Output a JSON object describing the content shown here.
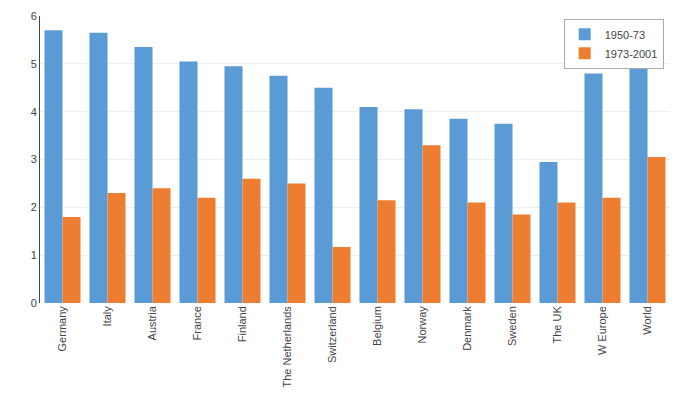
{
  "chart_data": {
    "type": "bar",
    "categories": [
      "Germany",
      "Italy",
      "Austria",
      "France",
      "Finland",
      "The Netherlands",
      "Switzerland",
      "Belgium",
      "Norway",
      "Denmark",
      "Sweden",
      "The UK",
      "W Europe",
      "World"
    ],
    "series": [
      {
        "name": "1950-73",
        "color": "#5B9BD5",
        "values": [
          5.7,
          5.65,
          5.35,
          5.05,
          4.95,
          4.75,
          4.5,
          4.1,
          4.05,
          3.85,
          3.75,
          2.95,
          4.8,
          4.9
        ]
      },
      {
        "name": "1973-2001",
        "color": "#ED7D31",
        "values": [
          1.8,
          2.3,
          2.4,
          2.2,
          2.6,
          2.5,
          1.17,
          2.15,
          3.3,
          2.1,
          1.85,
          2.1,
          2.2,
          3.05
        ]
      }
    ],
    "ylim": [
      0,
      6
    ],
    "yticks": [
      0,
      1,
      2,
      3,
      4,
      5,
      6
    ],
    "grid": true,
    "legend": "upper right"
  }
}
